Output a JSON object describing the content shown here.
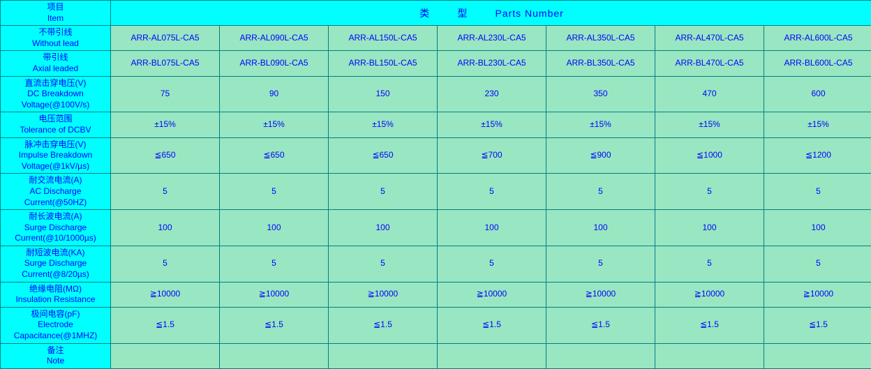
{
  "colors": {
    "header_bg": "#00ffff",
    "cell_bg": "#99e6c2",
    "border": "#008080",
    "text": "#0000ff"
  },
  "header": {
    "item_cn": "项目",
    "item_en": "Item",
    "type_cn": "类",
    "type_cn2": "型",
    "parts_label": "Parts Number"
  },
  "row_labels": [
    {
      "cn": "不带引线",
      "en": "Without lead"
    },
    {
      "cn": "带引线",
      "en": "Axial leaded"
    },
    {
      "cn": "直流击穿电压(V)",
      "en": "DC Breakdown",
      "en2": "Voltage(@100V/s)"
    },
    {
      "cn": "电压范围",
      "en": "Tolerance of DCBV"
    },
    {
      "cn": "脉冲击穿电压(V)",
      "en": "Impulse Breakdown",
      "en2": "Voltage(@1kV/µs)"
    },
    {
      "cn": "耐交流电流(A)",
      "en": "AC Discharge",
      "en2": "Current(@50HZ)"
    },
    {
      "cn": "耐长波电流(A)",
      "en": "Surge Discharge",
      "en2": "Current(@10/1000µs)"
    },
    {
      "cn": "耐短波电流(KA)",
      "en": "Surge Discharge",
      "en2": "Current(@8/20µs)"
    },
    {
      "cn": "绝缘电阻(MΩ)",
      "en": "Insulation Resistance"
    },
    {
      "cn": "极间电容(pF)",
      "en": "Electrode",
      "en2": "Capacitance(@1MHZ)"
    },
    {
      "cn": "备注",
      "en": "Note"
    }
  ],
  "data": {
    "without_lead": [
      "ARR-AL075L-CA5",
      "ARR-AL090L-CA5",
      "ARR-AL150L-CA5",
      "ARR-AL230L-CA5",
      "ARR-AL350L-CA5",
      "ARR-AL470L-CA5",
      "ARR-AL600L-CA5"
    ],
    "axial_leaded": [
      "ARR-BL075L-CA5",
      "ARR-BL090L-CA5",
      "ARR-BL150L-CA5",
      "ARR-BL230L-CA5",
      "ARR-BL350L-CA5",
      "ARR-BL470L-CA5",
      "ARR-BL600L-CA5"
    ],
    "dc_breakdown": [
      "75",
      "90",
      "150",
      "230",
      "350",
      "470",
      "600"
    ],
    "tolerance": [
      "±15%",
      "±15%",
      "±15%",
      "±15%",
      "±15%",
      "±15%",
      "±15%"
    ],
    "impulse": [
      "≦650",
      "≦650",
      "≦650",
      "≦700",
      "≦900",
      "≦1000",
      "≦1200"
    ],
    "ac_discharge": [
      "5",
      "5",
      "5",
      "5",
      "5",
      "5",
      "5"
    ],
    "surge_long": [
      "100",
      "100",
      "100",
      "100",
      "100",
      "100",
      "100"
    ],
    "surge_short": [
      "5",
      "5",
      "5",
      "5",
      "5",
      "5",
      "5"
    ],
    "insulation": [
      "≧10000",
      "≧10000",
      "≧10000",
      "≧10000",
      "≧10000",
      "≧10000",
      "≧10000"
    ],
    "capacitance": [
      "≦1.5",
      "≦1.5",
      "≦1.5",
      "≦1.5",
      "≦1.5",
      "≦1.5",
      "≦1.5"
    ],
    "note": [
      "",
      "",
      "",
      "",
      "",
      "",
      ""
    ]
  }
}
